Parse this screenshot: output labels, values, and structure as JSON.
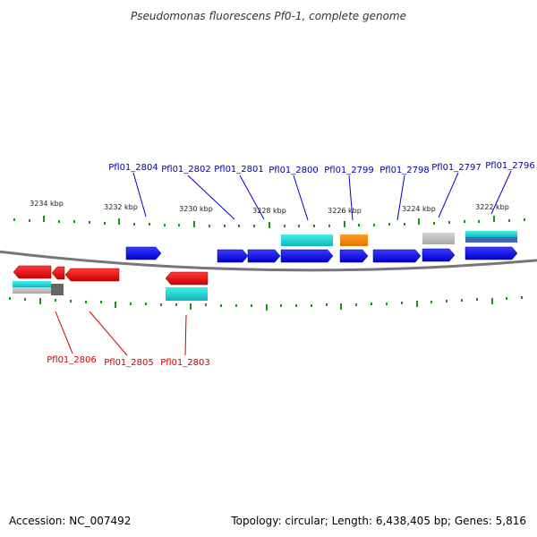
{
  "title": "Pseudomonas fluorescens Pf0-1, complete genome",
  "footer": {
    "accession": "Accession: NC_007492",
    "summary": "Topology: circular; Length: 6,438,405 bp; Genes: 5,816"
  },
  "scale_labels": [
    "3234 kbp",
    "3232 kbp",
    "3230 kbp",
    "3228 kbp",
    "3226 kbp",
    "3224 kbp",
    "3222 kbp"
  ],
  "gene_labels_top": [
    "Pfl01_2804",
    "Pfl01_2802",
    "Pfl01_2801",
    "Pfl01_2800",
    "Pfl01_2799",
    "Pfl01_2798",
    "Pfl01_2797",
    "Pfl01_2796"
  ],
  "gene_labels_bottom": [
    "Pfl01_2806",
    "Pfl01_2805",
    "Pfl01_2803"
  ],
  "colors": {
    "forward_gene": "#0000ee",
    "reverse_gene": "#ee0000",
    "rna_cyan": "#22d8d8",
    "orange": "#ee8800",
    "grey": "#bbbbbb",
    "tick": "#119911",
    "label_top": "#0000aa",
    "label_bottom": "#cc0000",
    "backbone": "#777777"
  }
}
